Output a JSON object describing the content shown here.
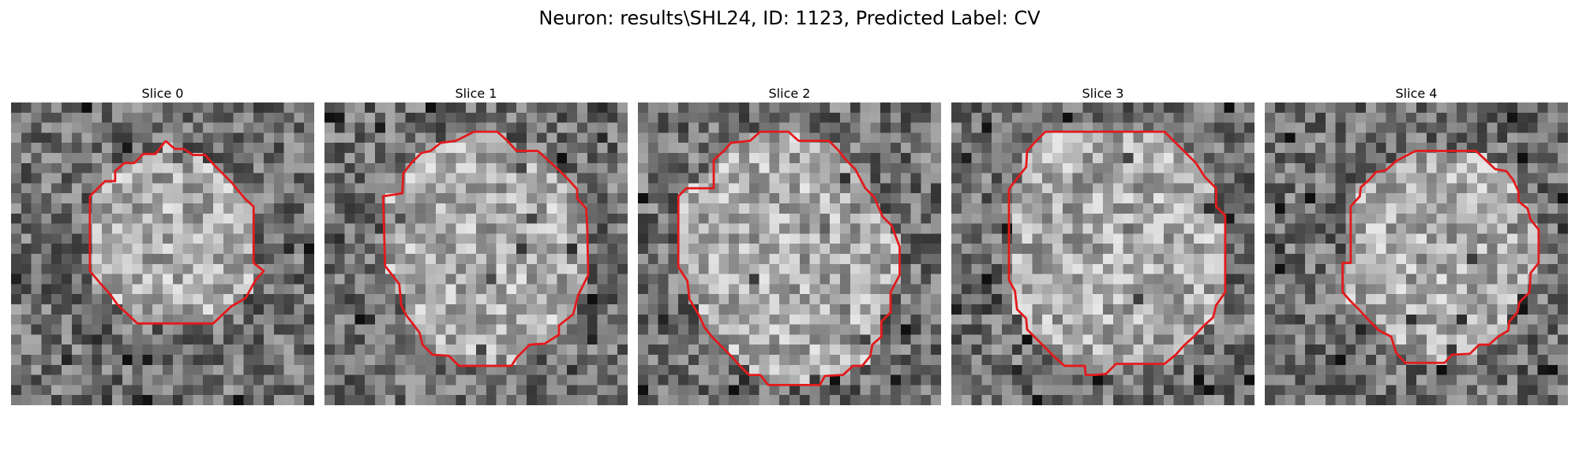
{
  "figure": {
    "title": "Neuron: results\\SHL24, ID: 1123, Predicted Label: CV"
  },
  "colors": {
    "contour": "#e31a1c",
    "background": "#ffffff"
  },
  "panels": [
    {
      "title": "Slice 0"
    },
    {
      "title": "Slice 1"
    },
    {
      "title": "Slice 2"
    },
    {
      "title": "Slice 3"
    },
    {
      "title": "Slice 4"
    }
  ]
}
